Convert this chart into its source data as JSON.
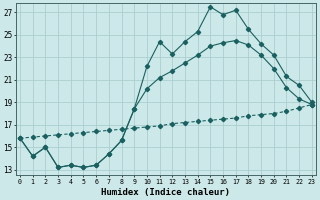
{
  "xlabel": "Humidex (Indice chaleur)",
  "x_ticks": [
    0,
    1,
    2,
    3,
    4,
    5,
    6,
    7,
    8,
    9,
    10,
    11,
    12,
    13,
    14,
    15,
    16,
    17,
    18,
    19,
    20,
    21,
    22,
    23
  ],
  "y_ticks": [
    13,
    15,
    17,
    19,
    21,
    23,
    25,
    27
  ],
  "xlim": [
    -0.3,
    23.3
  ],
  "ylim": [
    12.5,
    27.8
  ],
  "bg_color": "#cce8e8",
  "grid_color": "#aacece",
  "line_color": "#1a6060",
  "line1_x": [
    0,
    1,
    2,
    3,
    4,
    5,
    6,
    7,
    8,
    9,
    10,
    11,
    12,
    13,
    14,
    15,
    16,
    17,
    18,
    19,
    20,
    21,
    22,
    23
  ],
  "line1_y": [
    15.8,
    14.2,
    15.0,
    13.2,
    13.4,
    13.2,
    13.4,
    14.4,
    15.6,
    18.4,
    22.2,
    24.4,
    23.3,
    24.4,
    25.3,
    27.5,
    26.8,
    27.2,
    25.5,
    24.2,
    23.2,
    21.3,
    20.5,
    19.0
  ],
  "line2_x": [
    0,
    1,
    2,
    3,
    4,
    5,
    6,
    7,
    8,
    9,
    10,
    11,
    12,
    13,
    14,
    15,
    16,
    17,
    18,
    19,
    20,
    21,
    22,
    23
  ],
  "line2_y": [
    15.8,
    14.2,
    15.0,
    13.2,
    13.4,
    13.2,
    13.4,
    14.4,
    15.6,
    18.4,
    20.2,
    21.2,
    21.8,
    22.5,
    23.2,
    24.0,
    24.3,
    24.5,
    24.1,
    23.2,
    22.0,
    20.3,
    19.3,
    18.8
  ],
  "line3_x": [
    0,
    1,
    2,
    3,
    4,
    5,
    6,
    7,
    8,
    9,
    10,
    11,
    12,
    13,
    14,
    15,
    16,
    17,
    18,
    19,
    20,
    21,
    22,
    23
  ],
  "line3_y": [
    15.8,
    15.9,
    16.0,
    16.1,
    16.2,
    16.3,
    16.4,
    16.5,
    16.6,
    16.7,
    16.8,
    16.9,
    17.1,
    17.2,
    17.3,
    17.4,
    17.5,
    17.6,
    17.8,
    17.9,
    18.0,
    18.2,
    18.5,
    18.8
  ]
}
